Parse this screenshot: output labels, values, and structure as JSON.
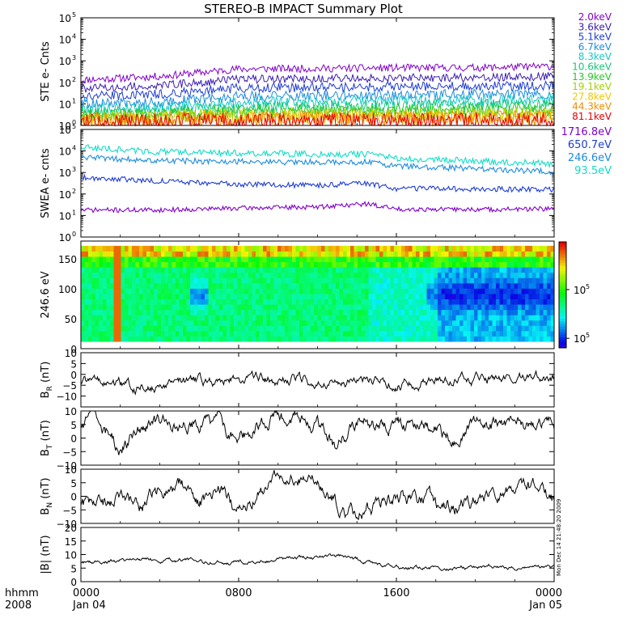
{
  "title": "STEREO-B IMPACT Summary Plot",
  "time_axis": {
    "ticks": [
      {
        "hour": 0,
        "label": "0000",
        "date": "Jan 04"
      },
      {
        "hour": 8,
        "label": "0800",
        "date": ""
      },
      {
        "hour": 16,
        "label": "1600",
        "date": ""
      },
      {
        "hour": 24,
        "label": "0000",
        "date": "Jan 05"
      }
    ],
    "corner_unit": "hhmm",
    "corner_year": "2008"
  },
  "side_stamp": "Mon Dec 14 21:48:20 2009",
  "chart_data": [
    {
      "type": "line",
      "panel": "ste",
      "ylabel": "STE e- Cnts",
      "yscale": "log",
      "ylim": [
        1,
        100000
      ],
      "yticks": [
        1,
        10,
        100,
        1000,
        10000,
        100000
      ],
      "ytick_labels": [
        "10",
        "10",
        "10",
        "10",
        "10",
        "10"
      ],
      "ytick_exps": [
        "0",
        "1",
        "2",
        "3",
        "4",
        "5"
      ],
      "x": [
        0,
        4,
        8,
        12,
        16,
        20,
        24
      ],
      "series": [
        {
          "name": "2.0keV",
          "color": "#8000c8",
          "values": [
            130,
            190,
            420,
            440,
            470,
            480,
            560
          ]
        },
        {
          "name": "3.6keV",
          "color": "#3a1eb0",
          "values": [
            50,
            70,
            140,
            150,
            160,
            170,
            190
          ]
        },
        {
          "name": "5.1keV",
          "color": "#1e3cd2",
          "values": [
            22,
            28,
            55,
            58,
            62,
            66,
            72
          ]
        },
        {
          "name": "6.7keV",
          "color": "#1e8cdc",
          "values": [
            10,
            12,
            22,
            24,
            26,
            28,
            30
          ]
        },
        {
          "name": "8.3keV",
          "color": "#14c8c8",
          "values": [
            6,
            7,
            12,
            13,
            14,
            15,
            16
          ]
        },
        {
          "name": "10.6keV",
          "color": "#14c878",
          "values": [
            4,
            4.5,
            7,
            7.5,
            8,
            8.5,
            9
          ]
        },
        {
          "name": "13.9keV",
          "color": "#28c828",
          "values": [
            3,
            3.2,
            4.5,
            4.8,
            5,
            5.2,
            5.5
          ]
        },
        {
          "name": "19.1keV",
          "color": "#a0d200",
          "values": [
            2.4,
            2.5,
            3.2,
            3.3,
            3.4,
            3.5,
            3.6
          ]
        },
        {
          "name": "27.8keV",
          "color": "#f0c800",
          "values": [
            2,
            2.1,
            2.5,
            2.5,
            2.6,
            2.6,
            2.7
          ]
        },
        {
          "name": "44.3keV",
          "color": "#f08c00",
          "values": [
            1.7,
            1.8,
            2,
            2,
            2.1,
            2.1,
            2.2
          ]
        },
        {
          "name": "81.1keV",
          "color": "#e60000",
          "values": [
            1.4,
            1.5,
            1.6,
            1.6,
            1.6,
            1.6,
            1.7
          ]
        }
      ]
    },
    {
      "type": "line",
      "panel": "swea",
      "ylabel": "SWEA e- cnts",
      "yscale": "log",
      "ylim": [
        1,
        100000
      ],
      "yticks": [
        1,
        10,
        100,
        1000,
        10000,
        100000
      ],
      "ytick_labels": [
        "10",
        "10",
        "10",
        "10",
        "10",
        "10"
      ],
      "ytick_exps": [
        "0",
        "1",
        "2",
        "3",
        "4",
        "5"
      ],
      "x": [
        0,
        4,
        8,
        12,
        14.5,
        16,
        20,
        24
      ],
      "series": [
        {
          "name": "1716.8eV",
          "color": "#8000c8",
          "values": [
            18,
            18,
            22,
            25,
            35,
            20,
            19,
            20
          ]
        },
        {
          "name": "650.7eV",
          "color": "#1e3cd2",
          "values": [
            600,
            400,
            280,
            250,
            300,
            180,
            170,
            160
          ]
        },
        {
          "name": "246.6eV",
          "color": "#1e8cdc",
          "values": [
            5000,
            3500,
            3200,
            3000,
            3000,
            2000,
            1500,
            1100
          ]
        },
        {
          "name": "93.5eV",
          "color": "#14dcc8",
          "values": [
            15000,
            9000,
            8000,
            7000,
            7000,
            4500,
            3500,
            2500
          ]
        }
      ]
    },
    {
      "type": "heatmap",
      "panel": "pad",
      "ylabel": "246.6 eV",
      "ylim": [
        0,
        180
      ],
      "yticks": [
        0,
        50,
        100,
        150
      ],
      "ytick_labels": [
        "0",
        "50",
        "100",
        "150"
      ],
      "colorbar_ticks": [
        {
          "label": "10",
          "exp": "5",
          "fraction": 0.55
        },
        {
          "label": "10",
          "exp": "5",
          "fraction": 0.09
        }
      ],
      "notes": "pitch angle distribution; red near 170 deg, mostly green/cyan, blue patches near 90 deg around 06h and 18h-24h"
    },
    {
      "type": "line",
      "panel": "br",
      "ylabel_base": "B",
      "ylabel_sub": "R",
      "ylabel_unit": "(nT)",
      "ylim": [
        -15,
        10
      ],
      "yticks": [
        -10,
        -5,
        0,
        5,
        10
      ],
      "ytick_labels": [
        "−10",
        "−5",
        "0",
        "5",
        "10"
      ],
      "x": [
        0,
        2,
        4,
        6,
        8,
        10,
        12,
        14,
        16,
        18,
        20,
        22,
        24
      ],
      "series": [
        {
          "color": "#000000",
          "values": [
            -4,
            -5,
            -6,
            -3,
            -2,
            -2,
            -3,
            -3,
            -4,
            -2,
            -2,
            -1,
            -2
          ]
        }
      ]
    },
    {
      "type": "line",
      "panel": "bt",
      "ylabel_base": "B",
      "ylabel_sub": "T",
      "ylabel_unit": "(nT)",
      "ylim": [
        -10,
        10
      ],
      "yticks": [
        -10,
        -5,
        0,
        5,
        10
      ],
      "ytick_labels": [
        "−10",
        "−5",
        "0",
        "5",
        "10"
      ],
      "x": [
        0,
        1,
        2,
        3,
        4,
        6,
        7,
        8,
        9,
        10,
        11,
        12,
        13,
        14,
        15,
        16,
        17,
        18,
        19,
        20,
        21,
        22,
        23,
        24
      ],
      "series": [
        {
          "color": "#000000",
          "values": [
            5,
            7,
            -4,
            3,
            5,
            6,
            6,
            -2,
            5,
            7,
            6,
            5,
            -3,
            6,
            5,
            6,
            5,
            4,
            -2,
            5,
            5,
            6,
            6,
            3
          ]
        }
      ]
    },
    {
      "type": "line",
      "panel": "bn",
      "ylabel_base": "B",
      "ylabel_sub": "N",
      "ylabel_unit": "(nT)",
      "ylim": [
        -10,
        10
      ],
      "yticks": [
        -10,
        -5,
        0,
        5,
        10
      ],
      "ytick_labels": [
        "−10",
        "−5",
        "0",
        "5",
        "10"
      ],
      "x": [
        0,
        1,
        2,
        3,
        4,
        5,
        6,
        7,
        8,
        9,
        10,
        11,
        12,
        13,
        14,
        15,
        16,
        17,
        18,
        19,
        20,
        21,
        22,
        23,
        24
      ],
      "series": [
        {
          "color": "#000000",
          "values": [
            -3,
            -4,
            0,
            -5,
            2,
            5,
            -2,
            4,
            -6,
            2,
            6,
            7,
            6,
            -3,
            -7,
            -2,
            -1,
            0,
            -3,
            -4,
            -1,
            2,
            4,
            2,
            -2
          ]
        }
      ]
    },
    {
      "type": "line",
      "panel": "bmag",
      "ylabel_base": "|B|",
      "ylabel_sub": "",
      "ylabel_unit": "(nT)",
      "ylim": [
        0,
        20
      ],
      "yticks": [
        0,
        5,
        10,
        15,
        20
      ],
      "ytick_labels": [
        "0",
        "5",
        "10",
        "15",
        "20"
      ],
      "x": [
        0,
        2,
        4,
        6,
        8,
        10,
        12,
        13,
        14,
        15,
        16,
        18,
        20,
        22,
        24
      ],
      "series": [
        {
          "color": "#000000",
          "values": [
            7,
            8,
            8,
            7,
            7,
            8,
            9,
            9.5,
            8,
            6,
            5,
            5,
            5.5,
            5.5,
            5
          ]
        }
      ]
    }
  ]
}
